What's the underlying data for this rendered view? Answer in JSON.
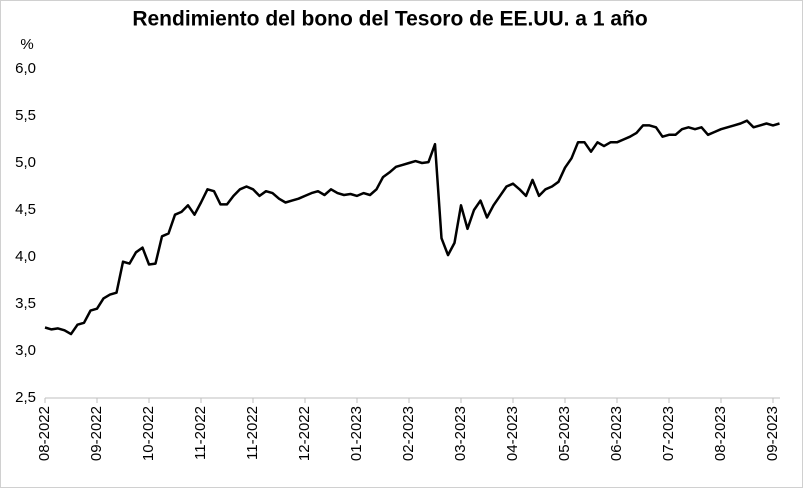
{
  "chart_data": {
    "type": "line",
    "title": "Rendimiento del bono del Tesoro de EE.UU. a 1 año",
    "y_label": "%",
    "categories": [
      "08-2022",
      null,
      null,
      null,
      null,
      null,
      null,
      null,
      "09-2022",
      null,
      null,
      null,
      null,
      null,
      null,
      null,
      "10-2022",
      null,
      null,
      null,
      null,
      null,
      null,
      null,
      "11-2022",
      null,
      null,
      null,
      null,
      null,
      null,
      null,
      "11-2022",
      null,
      null,
      null,
      null,
      null,
      null,
      null,
      "12-2022",
      null,
      null,
      null,
      null,
      null,
      null,
      null,
      "01-2023",
      null,
      null,
      null,
      null,
      null,
      null,
      null,
      "02-2023",
      null,
      null,
      null,
      null,
      null,
      null,
      null,
      "03-2023",
      null,
      null,
      null,
      null,
      null,
      null,
      null,
      "04-2023",
      null,
      null,
      null,
      null,
      null,
      null,
      null,
      "05-2023",
      null,
      null,
      null,
      null,
      null,
      null,
      null,
      "06-2023",
      null,
      null,
      null,
      null,
      null,
      null,
      null,
      "07-2023",
      null,
      null,
      null,
      null,
      null,
      null,
      null,
      "08-2023",
      null,
      null,
      null,
      null,
      null,
      null,
      null,
      "09-2023",
      null
    ],
    "series": [
      {
        "name": "Rendimiento",
        "color": "#000000",
        "values": [
          3.25,
          3.23,
          3.24,
          3.22,
          3.18,
          3.28,
          3.3,
          3.43,
          3.45,
          3.56,
          3.6,
          3.62,
          3.95,
          3.93,
          4.05,
          4.1,
          3.92,
          3.93,
          4.22,
          4.25,
          4.45,
          4.48,
          4.55,
          4.45,
          4.58,
          4.72,
          4.7,
          4.56,
          4.56,
          4.65,
          4.72,
          4.75,
          4.72,
          4.65,
          4.7,
          4.68,
          4.62,
          4.58,
          4.6,
          4.62,
          4.65,
          4.68,
          4.7,
          4.66,
          4.72,
          4.68,
          4.66,
          4.67,
          4.65,
          4.68,
          4.66,
          4.72,
          4.85,
          4.9,
          4.96,
          4.98,
          5.0,
          5.02,
          5.0,
          5.01,
          5.2,
          4.2,
          4.02,
          4.15,
          4.55,
          4.3,
          4.5,
          4.6,
          4.42,
          4.55,
          4.65,
          4.75,
          4.78,
          4.72,
          4.65,
          4.82,
          4.65,
          4.72,
          4.75,
          4.8,
          4.95,
          5.05,
          5.22,
          5.22,
          5.12,
          5.22,
          5.18,
          5.22,
          5.22,
          5.25,
          5.28,
          5.32,
          5.4,
          5.4,
          5.38,
          5.28,
          5.3,
          5.3,
          5.36,
          5.38,
          5.36,
          5.38,
          5.3,
          5.33,
          5.36,
          5.38,
          5.4,
          5.42,
          5.45,
          5.38,
          5.4,
          5.42,
          5.4,
          5.42
        ]
      }
    ],
    "ylim": [
      2.5,
      6.0
    ],
    "yticks": [
      {
        "value": 2.5,
        "label": "2,5"
      },
      {
        "value": 3.0,
        "label": "3,0"
      },
      {
        "value": 3.5,
        "label": "3,5"
      },
      {
        "value": 4.0,
        "label": "4,0"
      },
      {
        "value": 4.5,
        "label": "4,5"
      },
      {
        "value": 5.0,
        "label": "5,0"
      },
      {
        "value": 5.5,
        "label": "5,5"
      },
      {
        "value": 6.0,
        "label": "6,0"
      }
    ],
    "grid": false
  }
}
